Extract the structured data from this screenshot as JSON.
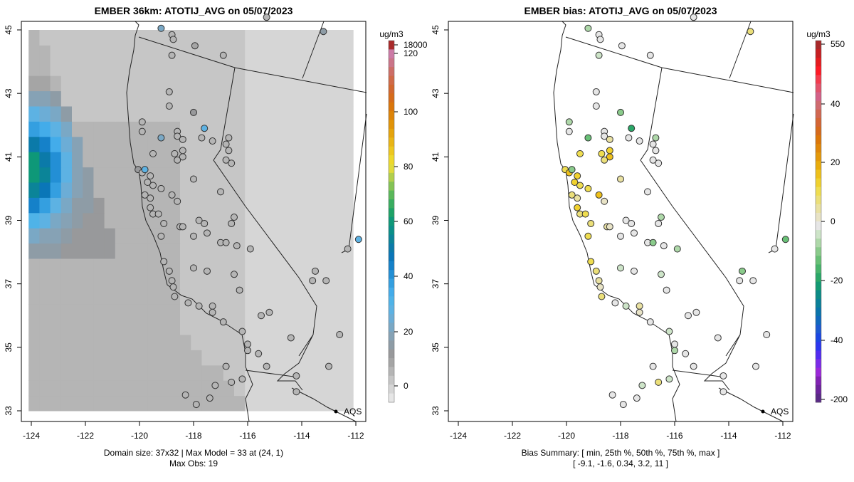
{
  "chart_data": [
    {
      "type": "heatmap",
      "title": "EMBER 36km: ATOTIJ_AVG on 05/07/2023",
      "xlim": [
        -124.3,
        -111.8
      ],
      "ylim": [
        32.8,
        45.3
      ],
      "xticks": [
        "-124",
        "-122",
        "-120",
        "-118",
        "-116",
        "-114",
        "-112"
      ],
      "xtick_values": [
        -124,
        -122,
        -120,
        -118,
        -116,
        -114,
        -112
      ],
      "yticks": [
        "33",
        "35",
        "37",
        "39",
        "41",
        "43",
        "45"
      ],
      "ytick_values": [
        33,
        35,
        37,
        39,
        41,
        43,
        45
      ],
      "grid": false,
      "colorbar": {
        "unit": "ug/m3",
        "ticks": [
          "0",
          "20",
          "40",
          "60",
          "80",
          "100",
          "120",
          "18000"
        ],
        "tick_values": [
          0,
          20,
          40,
          60,
          80,
          100,
          120,
          18000
        ],
        "colors": [
          "#e6e6e6",
          "#d6d6d6",
          "#c6c6c6",
          "#b5b5b5",
          "#a5a5a5",
          "#98999b",
          "#8e9ca6",
          "#86a2b5",
          "#7aa8c5",
          "#6cadd6",
          "#5db2e3",
          "#4fb3e8",
          "#43acea",
          "#349fe0",
          "#238fd5",
          "#1581c9",
          "#0a76b8",
          "#0b7aa9",
          "#0b8498",
          "#0a8f88",
          "#0e9878",
          "#1ea267",
          "#39ad60",
          "#5ab85a",
          "#84c355",
          "#b2cf4c",
          "#e1db3c",
          "#eed82c",
          "#edc71f",
          "#e9b515",
          "#e5a40c",
          "#e19409",
          "#dd8408",
          "#da760b",
          "#d66b1a",
          "#d2672f",
          "#d06a48",
          "#cd6e67",
          "#cb7589",
          "#cc7aa6",
          "#a92a2a"
        ]
      },
      "annotation": "AQS",
      "footer_lines": [
        "Domain size: 37x32 | Max Model = 33 at (24, 1)",
        "Max Obs: 19"
      ],
      "domain_size": "37x32",
      "max_model": 33,
      "max_model_cell": [
        24,
        1
      ],
      "max_obs": 19
    },
    {
      "type": "scatter",
      "title": "EMBER bias: ATOTIJ_AVG on 05/07/2023",
      "xlim": [
        -124.3,
        -111.8
      ],
      "ylim": [
        32.8,
        45.3
      ],
      "xticks": [
        "-124",
        "-122",
        "-120",
        "-118",
        "-116",
        "-114",
        "-112"
      ],
      "xtick_values": [
        -124,
        -122,
        -120,
        -118,
        -116,
        -114,
        -112
      ],
      "yticks": [
        "33",
        "35",
        "37",
        "39",
        "41",
        "43",
        "45"
      ],
      "ytick_values": [
        33,
        35,
        37,
        39,
        41,
        43,
        45
      ],
      "grid": false,
      "colorbar": {
        "unit": "ug/m3",
        "ticks": [
          "-200",
          "-40",
          "-20",
          "0",
          "20",
          "40",
          "550"
        ],
        "tick_values": [
          -200,
          -40,
          -20,
          0,
          20,
          40,
          550
        ],
        "colors": [
          "#5a2a86",
          "#6c249c",
          "#8122b3",
          "#9b28d9",
          "#7b2be8",
          "#522cf0",
          "#2b37ef",
          "#1b47e2",
          "#1d59d0",
          "#1068bd",
          "#0a74ab",
          "#0b8099",
          "#0c8b86",
          "#139a73",
          "#2aa768",
          "#48b46b",
          "#68c076",
          "#8acb8b",
          "#aed8a9",
          "#cde4c8",
          "#e6e6e6",
          "#e8e3c6",
          "#e9e1a2",
          "#ebdf79",
          "#efdd50",
          "#f0d12e",
          "#eec01b",
          "#e9ac0c",
          "#e4990a",
          "#e08709",
          "#dc7709",
          "#d66a1c",
          "#d46534",
          "#d16751",
          "#cf6a6f",
          "#d36188",
          "#e2536c",
          "#f33b4d",
          "#fe1a26",
          "#e51c1f",
          "#c61f22",
          "#a8292a"
        ]
      },
      "annotation": "AQS",
      "footer_lines": [
        "Bias Summary: [ min, 25th %, 50th %, 75th %, max ]",
        "[ -9.1,   -1.6,   0.34,   3.2,   11 ]"
      ],
      "bias_summary": {
        "min": -9.1,
        "p25": -1.6,
        "p50": 0.34,
        "p75": 3.2,
        "max": 11
      }
    }
  ],
  "sites": [
    [
      -119.2,
      45.05,
      8,
      -2
    ],
    [
      -118.8,
      44.85,
      3,
      0
    ],
    [
      -118.75,
      44.7,
      3,
      0
    ],
    [
      -117.95,
      44.5,
      4,
      0
    ],
    [
      -116.9,
      44.2,
      3,
      0
    ],
    [
      -118.8,
      44.2,
      3,
      -1
    ],
    [
      -115.3,
      45.4,
      3,
      0
    ],
    [
      -113.2,
      44.95,
      6,
      3
    ],
    [
      -118.9,
      43.05,
      3,
      0
    ],
    [
      -118.9,
      42.6,
      3,
      0
    ],
    [
      -118.0,
      42.4,
      5,
      -3
    ],
    [
      -119.9,
      42.1,
      3,
      -2
    ],
    [
      -119.9,
      41.8,
      3,
      0
    ],
    [
      -118.6,
      41.8,
      3,
      0
    ],
    [
      -117.6,
      41.9,
      10,
      -6
    ],
    [
      -119.2,
      41.6,
      8,
      -4
    ],
    [
      -118.6,
      41.65,
      3,
      0
    ],
    [
      -118.4,
      41.55,
      3,
      2
    ],
    [
      -117.7,
      41.6,
      3,
      0
    ],
    [
      -117.3,
      41.5,
      3,
      0
    ],
    [
      -116.7,
      41.6,
      3,
      -2
    ],
    [
      -116.8,
      41.4,
      3,
      0
    ],
    [
      -116.7,
      41.2,
      3,
      0
    ],
    [
      -116.8,
      40.9,
      3,
      0
    ],
    [
      -116.6,
      40.8,
      3,
      0
    ],
    [
      -119.5,
      41.1,
      3,
      4
    ],
    [
      -118.7,
      41.1,
      3,
      4
    ],
    [
      -118.4,
      41.2,
      3,
      5
    ],
    [
      -118.4,
      41.0,
      3,
      6
    ],
    [
      -118.6,
      40.9,
      3,
      3
    ],
    [
      -118.0,
      40.3,
      3,
      2
    ],
    [
      -120.05,
      40.6,
      5,
      4
    ],
    [
      -119.9,
      40.5,
      3,
      6
    ],
    [
      -119.8,
      40.6,
      10,
      -3
    ],
    [
      -119.6,
      40.4,
      3,
      5
    ],
    [
      -119.7,
      40.2,
      3,
      5
    ],
    [
      -119.5,
      40.1,
      3,
      4
    ],
    [
      -119.2,
      40.0,
      3,
      4
    ],
    [
      -119.8,
      39.8,
      3,
      3
    ],
    [
      -119.6,
      39.7,
      3,
      2
    ],
    [
      -118.8,
      39.8,
      3,
      6
    ],
    [
      -118.6,
      39.6,
      3,
      1
    ],
    [
      -119.6,
      39.4,
      3,
      5
    ],
    [
      -119.5,
      39.2,
      3,
      3
    ],
    [
      -119.3,
      39.2,
      3,
      4
    ],
    [
      -119.1,
      38.9,
      3,
      3
    ],
    [
      -118.5,
      38.8,
      3,
      2
    ],
    [
      -117.0,
      39.9,
      3,
      0
    ],
    [
      -119.2,
      38.5,
      3,
      4
    ],
    [
      -118.4,
      38.8,
      3,
      1
    ],
    [
      -117.8,
      39.0,
      3,
      0
    ],
    [
      -117.6,
      38.9,
      3,
      0
    ],
    [
      -118.0,
      38.5,
      3,
      0
    ],
    [
      -117.5,
      38.6,
      3,
      0
    ],
    [
      -117.0,
      38.3,
      3,
      0
    ],
    [
      -116.4,
      38.2,
      3,
      0
    ],
    [
      -115.9,
      38.1,
      3,
      -2
    ],
    [
      -119.1,
      37.7,
      3,
      4
    ],
    [
      -118.9,
      37.4,
      3,
      3
    ],
    [
      -118.8,
      37.1,
      3,
      2
    ],
    [
      -118.75,
      36.9,
      3,
      1
    ],
    [
      -118.7,
      36.6,
      3,
      3
    ],
    [
      -118.0,
      37.5,
      3,
      -1
    ],
    [
      -116.5,
      37.3,
      3,
      -1
    ],
    [
      -118.2,
      36.4,
      3,
      0
    ],
    [
      -117.8,
      36.3,
      3,
      -1
    ],
    [
      -117.3,
      36.3,
      3,
      2
    ],
    [
      -117.3,
      36.1,
      3,
      1
    ],
    [
      -116.9,
      35.8,
      3,
      0
    ],
    [
      -116.2,
      35.5,
      3,
      -1
    ],
    [
      -116.0,
      35.1,
      3,
      0
    ],
    [
      -116.0,
      34.9,
      3,
      -2
    ],
    [
      -115.3,
      34.4,
      3,
      0
    ],
    [
      -114.4,
      35.3,
      3,
      0
    ],
    [
      -114.2,
      34.1,
      3,
      0
    ],
    [
      -113.0,
      34.4,
      3,
      0
    ],
    [
      -112.6,
      35.4,
      3,
      0
    ],
    [
      -116.2,
      34.0,
      3,
      -1
    ],
    [
      -116.6,
      33.9,
      3,
      3
    ],
    [
      -117.2,
      33.8,
      3,
      -1
    ],
    [
      -117.9,
      33.2,
      3,
      0
    ],
    [
      -118.3,
      33.5,
      3,
      0
    ],
    [
      -117.4,
      33.4,
      3,
      0
    ],
    [
      -115.5,
      36.0,
      3,
      0
    ],
    [
      -115.2,
      36.1,
      3,
      0
    ],
    [
      -115.6,
      34.8,
      3,
      0
    ],
    [
      -116.8,
      34.4,
      3,
      0
    ],
    [
      -114.2,
      33.6,
      3,
      0
    ],
    [
      -113.1,
      37.1,
      3,
      0
    ],
    [
      -113.6,
      37.1,
      3,
      0
    ],
    [
      -113.5,
      37.4,
      3,
      -3
    ],
    [
      -112.3,
      38.1,
      3,
      0
    ],
    [
      -111.9,
      38.4,
      10,
      -4
    ],
    [
      -116.5,
      39.1,
      3,
      -2
    ],
    [
      -116.6,
      38.9,
      3,
      0
    ],
    [
      -116.8,
      38.3,
      3,
      -3
    ],
    [
      -117.5,
      37.4,
      3,
      0
    ],
    [
      -116.3,
      36.8,
      3,
      0
    ]
  ]
}
